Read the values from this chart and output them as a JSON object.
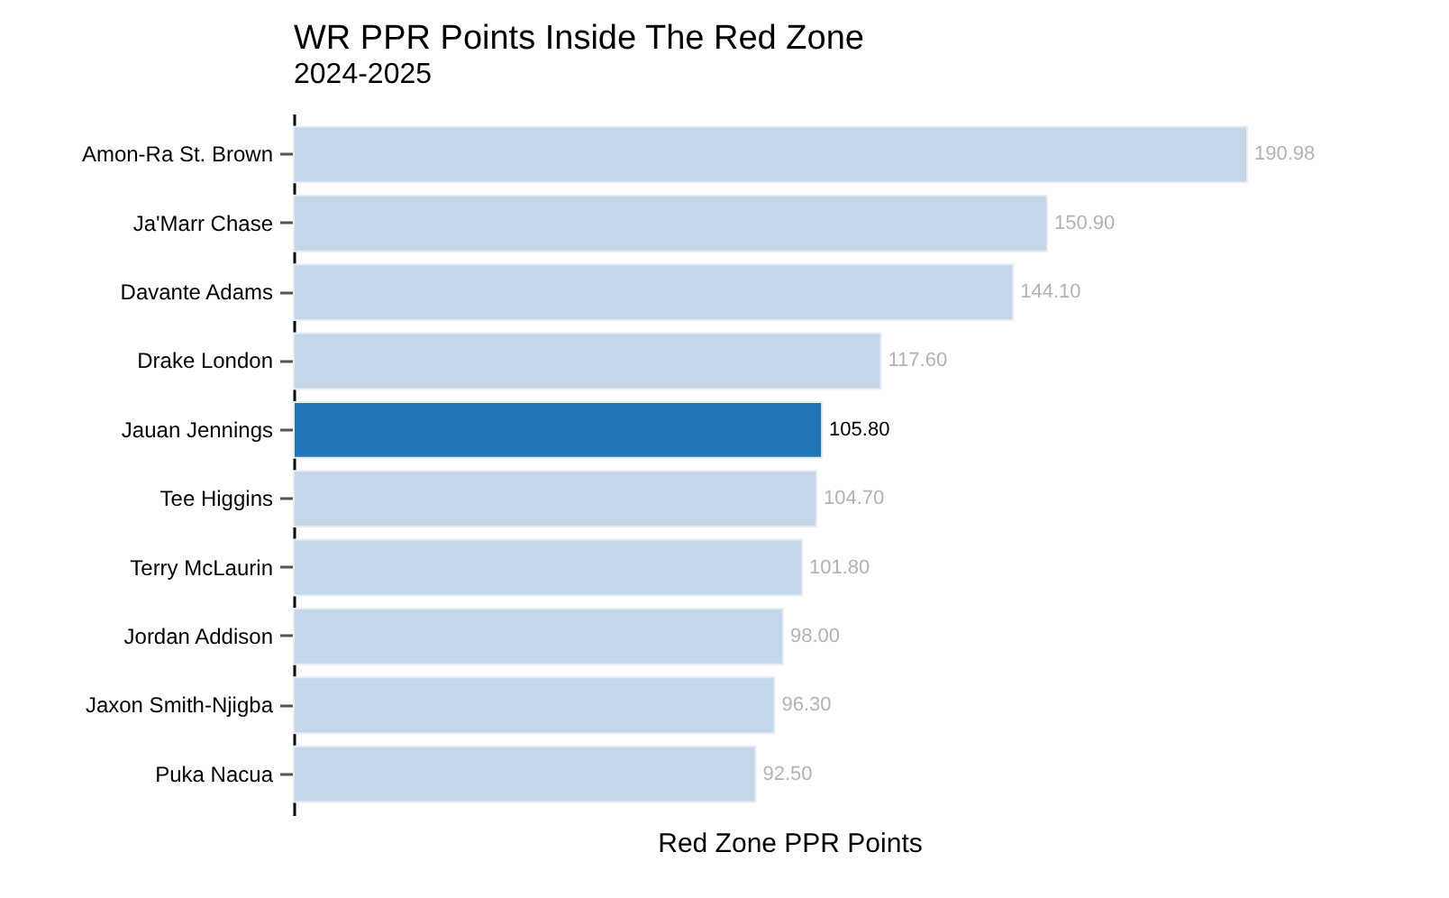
{
  "chart_data": {
    "type": "bar",
    "orientation": "horizontal",
    "title": "WR PPR Points Inside The Red Zone",
    "subtitle": "2024-2025",
    "xlabel": "Red Zone PPR Points",
    "categories": [
      "Amon-Ra St. Brown",
      "Ja'Marr Chase",
      "Davante Adams",
      "Drake London",
      "Jauan Jennings",
      "Tee Higgins",
      "Terry McLaurin",
      "Jordan Addison",
      "Jaxon Smith-Njigba",
      "Puka Nacua"
    ],
    "values": [
      190.98,
      150.9,
      144.1,
      117.6,
      105.8,
      104.7,
      101.8,
      98.0,
      96.3,
      92.5
    ],
    "value_labels": [
      "190.98",
      "150.90",
      "144.10",
      "117.60",
      "105.80",
      "104.70",
      "101.80",
      "98.00",
      "96.30",
      "92.50"
    ],
    "colors": [
      "#c6d6e9",
      "#c6d6e9",
      "#c6d6e9",
      "#c6d6e9",
      "#2276b5",
      "#c6d6e9",
      "#c6d6e9",
      "#c6d6e9",
      "#c6d6e9",
      "#c6d6e9"
    ],
    "tick_labels": "y",
    "grid": false
  }
}
